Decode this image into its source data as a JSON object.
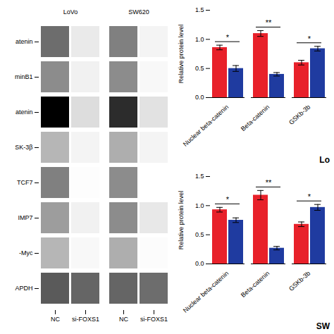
{
  "chart_data": [
    {
      "type": "heatmap",
      "groups": [
        "LoVo",
        "SW620"
      ],
      "categories": [
        "NC",
        "si-FOXS1"
      ],
      "rows": [
        "atenin",
        "minB1",
        "atenin",
        "SK-3β",
        "TCF7",
        "IMP7",
        "-Myc",
        "APDH"
      ],
      "cells": [
        [
          0.6,
          0.25,
          0.55,
          0.2
        ],
        [
          0.52,
          0.22,
          0.52,
          0.18
        ],
        [
          0.85,
          0.3,
          0.75,
          0.28
        ],
        [
          0.42,
          0.2,
          0.44,
          0.2
        ],
        [
          0.55,
          0.15,
          0.52,
          0.14
        ],
        [
          0.48,
          0.22,
          0.52,
          0.26
        ],
        [
          0.42,
          0.18,
          0.44,
          0.16
        ],
        [
          0.65,
          0.62,
          0.62,
          0.6
        ]
      ]
    },
    {
      "type": "bar",
      "categories": [
        "Nuclear beta-catenin",
        "Beta-catenin",
        "GSKb-3b"
      ],
      "series": [
        {
          "name": "NC",
          "color": "#e8212a",
          "values": [
            0.86,
            1.1,
            0.6
          ],
          "errors": [
            0.04,
            0.05,
            0.04
          ]
        },
        {
          "name": "si-FOXS1",
          "color": "#1f3ba0",
          "values": [
            0.5,
            0.4,
            0.84
          ],
          "errors": [
            0.05,
            0.03,
            0.04
          ]
        }
      ],
      "ylabel": "Relative protein level",
      "ylim": [
        0.0,
        1.5
      ],
      "yticks": [
        {
          "value": 0,
          "label": "0.0"
        },
        0.5,
        {
          "value": 1,
          "label": "1.0"
        },
        1.5
      ],
      "significance": [
        "*",
        "**",
        "*"
      ],
      "annotations": [
        "Lo"
      ]
    },
    {
      "type": "bar",
      "categories": [
        "Nuclear beta-catenin",
        "Beta-catenin",
        "GSKb-3b"
      ],
      "series": [
        {
          "name": "NC",
          "color": "#e8212a",
          "values": [
            0.93,
            1.18,
            0.68
          ],
          "errors": [
            0.04,
            0.08,
            0.04
          ]
        },
        {
          "name": "si-FOXS1",
          "color": "#1f3ba0",
          "values": [
            0.75,
            0.27,
            0.97
          ],
          "errors": [
            0.04,
            0.03,
            0.05
          ]
        }
      ],
      "ylabel": "Relative protein level",
      "ylim": [
        0.0,
        1.5
      ],
      "yticks": [
        {
          "value": 0,
          "label": "0.0"
        },
        0.5,
        {
          "value": 1,
          "label": "1.0"
        },
        1.5
      ],
      "significance": [
        "*",
        "**",
        "*"
      ],
      "annotations": [
        "SW"
      ]
    }
  ]
}
